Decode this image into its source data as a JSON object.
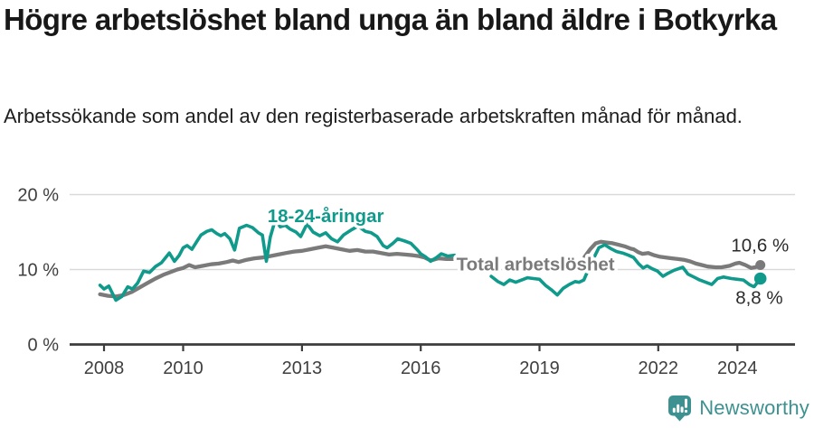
{
  "header": {
    "title": "Högre arbetslöshet bland unga än bland äldre i Botkyrka",
    "subtitle": "Arbetssökande som andel av den registerbaserade arbetskraften månad för månad."
  },
  "footer": {
    "brand": "Newsworthy",
    "icon": "newsworthy-logo-icon"
  },
  "colors": {
    "youth_line": "#0f9a8c",
    "total_line": "#7a7a7a",
    "end_label_text": "#2b2b2b",
    "axis": "#3c3c3c",
    "tick_label": "#3f3f3f",
    "grid": "#d9d9d9",
    "brand_teal": "#3d9191",
    "title_text": "#181818"
  },
  "chart_data": {
    "type": "line",
    "title": "Högre arbetslöshet bland unga än bland äldre i Botkyrka",
    "subtitle": "Arbetssökande som andel av den registerbaserade arbetskraften månad för månad.",
    "unit": "%",
    "grid": "horizontal",
    "legend_position": "inline-labels",
    "xlim": [
      2007.1,
      2025.4
    ],
    "ylim": [
      0,
      21.6
    ],
    "y_ticks": [
      {
        "value": 0,
        "label": "0 %"
      },
      {
        "value": 10,
        "label": "10 %"
      },
      {
        "value": 20,
        "label": "20 %"
      }
    ],
    "x_ticks": [
      {
        "value": 2008,
        "label": "2008"
      },
      {
        "value": 2010,
        "label": "2010"
      },
      {
        "value": 2013,
        "label": "2013"
      },
      {
        "value": 2016,
        "label": "2016"
      },
      {
        "value": 2019,
        "label": "2019"
      },
      {
        "value": 2022,
        "label": "2022"
      },
      {
        "value": 2024,
        "label": "2024"
      }
    ],
    "series": [
      {
        "name": "Total arbetslöshet",
        "color": "#7a7a7a",
        "line_width": 4.3,
        "end_dot_radius": 5.5,
        "end_label": "10,6 %",
        "end_value": 10.6,
        "label_anchor": {
          "x": 2016.9,
          "y": 9.9,
          "align": "start"
        },
        "end_label_anchor": {
          "x": 2025.3,
          "y": 12.4,
          "align": "end"
        },
        "segments": [
          [
            [
              2007.9,
              6.7
            ],
            [
              2008.1,
              6.5
            ],
            [
              2008.3,
              6.4
            ],
            [
              2008.5,
              6.6
            ],
            [
              2008.7,
              7.0
            ],
            [
              2008.9,
              7.6
            ],
            [
              2009.1,
              8.2
            ],
            [
              2009.3,
              8.8
            ],
            [
              2009.5,
              9.3
            ],
            [
              2009.7,
              9.7
            ],
            [
              2009.85,
              10.0
            ],
            [
              2010.0,
              10.2
            ],
            [
              2010.15,
              10.6
            ],
            [
              2010.3,
              10.3
            ],
            [
              2010.5,
              10.5
            ],
            [
              2010.7,
              10.7
            ],
            [
              2010.9,
              10.8
            ],
            [
              2011.1,
              11.0
            ],
            [
              2011.25,
              11.2
            ],
            [
              2011.4,
              11.0
            ],
            [
              2011.6,
              11.3
            ],
            [
              2011.8,
              11.5
            ],
            [
              2012.0,
              11.6
            ],
            [
              2012.2,
              11.8
            ],
            [
              2012.4,
              12.0
            ],
            [
              2012.6,
              12.2
            ],
            [
              2012.8,
              12.4
            ],
            [
              2013.0,
              12.5
            ],
            [
              2013.2,
              12.7
            ],
            [
              2013.4,
              12.9
            ],
            [
              2013.6,
              13.1
            ],
            [
              2013.8,
              12.9
            ],
            [
              2014.0,
              12.7
            ],
            [
              2014.2,
              12.5
            ],
            [
              2014.4,
              12.6
            ],
            [
              2014.6,
              12.4
            ],
            [
              2014.8,
              12.4
            ],
            [
              2015.0,
              12.2
            ],
            [
              2015.2,
              12.0
            ],
            [
              2015.4,
              12.1
            ],
            [
              2015.6,
              12.0
            ],
            [
              2015.8,
              11.9
            ],
            [
              2015.95,
              11.8
            ],
            [
              2016.1,
              11.6
            ],
            [
              2016.25,
              11.2
            ],
            [
              2016.45,
              11.5
            ],
            [
              2016.65,
              11.4
            ],
            [
              2016.85,
              11.4
            ]
          ],
          [
            [
              2020.14,
              11.7
            ],
            [
              2020.28,
              12.7
            ],
            [
              2020.42,
              13.5
            ],
            [
              2020.55,
              13.7
            ],
            [
              2020.7,
              13.6
            ],
            [
              2020.85,
              13.5
            ],
            [
              2021.0,
              13.3
            ],
            [
              2021.15,
              13.1
            ],
            [
              2021.3,
              12.8
            ],
            [
              2021.38,
              12.7
            ],
            [
              2021.5,
              12.3
            ],
            [
              2021.6,
              12.1
            ],
            [
              2021.75,
              12.2
            ],
            [
              2021.9,
              11.9
            ],
            [
              2022.05,
              11.7
            ],
            [
              2022.2,
              11.6
            ],
            [
              2022.35,
              11.5
            ],
            [
              2022.5,
              11.4
            ],
            [
              2022.65,
              11.3
            ],
            [
              2022.8,
              11.1
            ],
            [
              2022.95,
              10.8
            ],
            [
              2023.1,
              10.6
            ],
            [
              2023.25,
              10.4
            ],
            [
              2023.45,
              10.3
            ],
            [
              2023.6,
              10.3
            ],
            [
              2023.8,
              10.5
            ],
            [
              2023.95,
              10.8
            ],
            [
              2024.05,
              10.9
            ],
            [
              2024.2,
              10.6
            ],
            [
              2024.35,
              10.2
            ],
            [
              2024.45,
              10.3
            ],
            [
              2024.58,
              10.6
            ]
          ]
        ]
      },
      {
        "name": "18-24-åringar",
        "color": "#0f9a8c",
        "line_width": 3.6,
        "end_dot_radius": 6.8,
        "end_label": "8,8 %",
        "end_value": 8.8,
        "label_anchor": {
          "x": 2013.6,
          "y": 16.3,
          "align": "middle"
        },
        "end_label_anchor": {
          "x": 2024.55,
          "y": 5.4,
          "align": "middle"
        },
        "segments": [
          [
            [
              2007.9,
              7.9
            ],
            [
              2008.0,
              7.4
            ],
            [
              2008.12,
              7.8
            ],
            [
              2008.3,
              5.9
            ],
            [
              2008.45,
              6.4
            ],
            [
              2008.6,
              7.7
            ],
            [
              2008.72,
              7.4
            ],
            [
              2008.85,
              8.2
            ],
            [
              2009.0,
              9.8
            ],
            [
              2009.15,
              9.6
            ],
            [
              2009.3,
              10.4
            ],
            [
              2009.45,
              10.9
            ],
            [
              2009.65,
              12.2
            ],
            [
              2009.78,
              11.1
            ],
            [
              2009.9,
              11.9
            ],
            [
              2010.0,
              12.9
            ],
            [
              2010.1,
              13.2
            ],
            [
              2010.22,
              12.7
            ],
            [
              2010.35,
              13.8
            ],
            [
              2010.45,
              14.6
            ],
            [
              2010.6,
              15.1
            ],
            [
              2010.72,
              15.3
            ],
            [
              2010.85,
              14.8
            ],
            [
              2010.95,
              14.5
            ],
            [
              2011.05,
              14.8
            ],
            [
              2011.18,
              14.1
            ],
            [
              2011.3,
              12.6
            ],
            [
              2011.42,
              15.5
            ],
            [
              2011.6,
              15.9
            ],
            [
              2011.75,
              15.6
            ],
            [
              2011.9,
              14.9
            ],
            [
              2012.0,
              14.6
            ],
            [
              2012.1,
              11.1
            ],
            [
              2012.2,
              14.3
            ],
            [
              2012.33,
              16.7
            ],
            [
              2012.45,
              15.7
            ],
            [
              2012.58,
              15.9
            ],
            [
              2012.7,
              15.4
            ],
            [
              2012.85,
              15.0
            ],
            [
              2012.97,
              14.4
            ],
            [
              2013.13,
              16.1
            ],
            [
              2013.28,
              15.0
            ],
            [
              2013.45,
              14.5
            ],
            [
              2013.6,
              14.9
            ],
            [
              2013.75,
              14.1
            ],
            [
              2013.9,
              13.7
            ],
            [
              2014.05,
              14.6
            ],
            [
              2014.25,
              15.3
            ],
            [
              2014.42,
              15.8
            ],
            [
              2014.6,
              15.1
            ],
            [
              2014.75,
              14.9
            ],
            [
              2014.9,
              14.4
            ],
            [
              2015.05,
              13.2
            ],
            [
              2015.15,
              12.9
            ],
            [
              2015.3,
              13.5
            ],
            [
              2015.42,
              14.1
            ],
            [
              2015.6,
              13.8
            ],
            [
              2015.75,
              13.5
            ],
            [
              2015.9,
              12.7
            ],
            [
              2016.0,
              12.1
            ],
            [
              2016.12,
              11.7
            ],
            [
              2016.25,
              11.1
            ],
            [
              2016.4,
              11.6
            ],
            [
              2016.52,
              12.1
            ],
            [
              2016.68,
              11.8
            ],
            [
              2016.85,
              11.9
            ]
          ],
          [
            [
              2017.78,
              9.1
            ],
            [
              2017.95,
              8.4
            ],
            [
              2018.1,
              8.0
            ],
            [
              2018.25,
              8.6
            ],
            [
              2018.4,
              8.3
            ],
            [
              2018.55,
              8.6
            ],
            [
              2018.7,
              8.9
            ],
            [
              2018.85,
              8.8
            ],
            [
              2019.0,
              8.7
            ],
            [
              2019.15,
              7.9
            ],
            [
              2019.3,
              7.3
            ],
            [
              2019.45,
              6.6
            ],
            [
              2019.6,
              7.5
            ],
            [
              2019.75,
              8.0
            ],
            [
              2019.9,
              8.4
            ],
            [
              2020.0,
              8.3
            ],
            [
              2020.12,
              8.6
            ],
            [
              2020.3,
              10.8
            ],
            [
              2020.5,
              12.9
            ],
            [
              2020.65,
              13.3
            ],
            [
              2020.8,
              12.8
            ],
            [
              2020.95,
              12.4
            ],
            [
              2021.1,
              12.2
            ],
            [
              2021.25,
              11.9
            ],
            [
              2021.38,
              11.6
            ],
            [
              2021.5,
              10.8
            ],
            [
              2021.62,
              10.2
            ],
            [
              2021.72,
              10.5
            ],
            [
              2021.85,
              10.1
            ],
            [
              2021.98,
              9.8
            ],
            [
              2022.12,
              9.1
            ],
            [
              2022.25,
              9.5
            ],
            [
              2022.4,
              9.9
            ],
            [
              2022.62,
              10.3
            ],
            [
              2022.75,
              9.4
            ],
            [
              2022.9,
              9.0
            ],
            [
              2023.05,
              8.6
            ],
            [
              2023.2,
              8.3
            ],
            [
              2023.35,
              8.0
            ],
            [
              2023.5,
              8.8
            ],
            [
              2023.65,
              9.0
            ],
            [
              2023.85,
              8.8
            ],
            [
              2024.0,
              8.7
            ],
            [
              2024.15,
              8.6
            ],
            [
              2024.3,
              8.0
            ],
            [
              2024.42,
              7.7
            ],
            [
              2024.58,
              8.8
            ]
          ]
        ]
      }
    ]
  }
}
